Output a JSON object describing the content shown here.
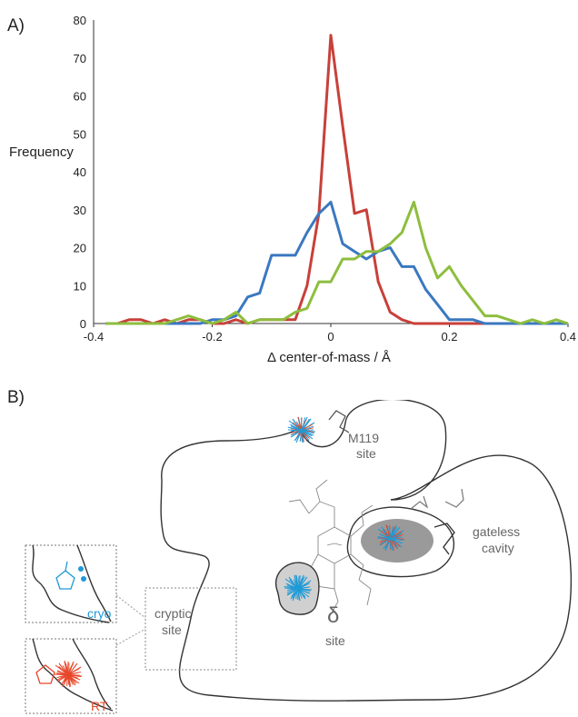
{
  "panels": {
    "a_label": "A)",
    "b_label": "B)"
  },
  "chart_data": {
    "type": "line",
    "title": "",
    "xlabel": "Δ center-of-mass / Å",
    "ylabel": "Frequency",
    "xlim": [
      -0.4,
      0.4
    ],
    "ylim": [
      0,
      80
    ],
    "xticks": [
      -0.4,
      -0.2,
      0,
      0.2,
      0.4
    ],
    "xtick_labels": [
      "-0.4",
      "-0.2",
      "0",
      "0.2",
      "0.4"
    ],
    "yticks": [
      0,
      10,
      20,
      30,
      40,
      50,
      60,
      70,
      80
    ],
    "ytick_labels": [
      "0",
      "10",
      "20",
      "30",
      "40",
      "50",
      "60",
      "70",
      "80"
    ],
    "grid": false,
    "legend": "none",
    "x": [
      -0.38,
      -0.36,
      -0.34,
      -0.32,
      -0.3,
      -0.28,
      -0.26,
      -0.24,
      -0.22,
      -0.2,
      -0.18,
      -0.16,
      -0.14,
      -0.12,
      -0.1,
      -0.08,
      -0.06,
      -0.04,
      -0.02,
      0,
      0.02,
      0.04,
      0.06,
      0.08,
      0.1,
      0.12,
      0.14,
      0.16,
      0.18,
      0.2,
      0.22,
      0.24,
      0.26,
      0.28,
      0.3,
      0.32,
      0.34,
      0.36,
      0.38,
      0.4
    ],
    "series": [
      {
        "color": "#c8403a",
        "values": [
          0,
          0,
          1,
          1,
          0,
          1,
          0,
          1,
          1,
          0,
          0,
          1,
          0,
          1,
          1,
          1,
          1,
          10,
          29,
          76,
          52,
          29,
          30,
          11,
          3,
          1,
          0,
          0,
          0,
          0,
          0,
          0,
          0,
          0,
          0,
          0,
          0,
          0,
          0,
          0
        ]
      },
      {
        "color": "#3b78c0",
        "values": [
          0,
          0,
          0,
          0,
          0,
          0,
          0,
          0,
          0,
          1,
          1,
          2,
          7,
          8,
          18,
          18,
          18,
          24,
          29,
          32,
          21,
          19,
          17,
          19,
          20,
          15,
          15,
          9,
          5,
          1,
          1,
          1,
          0,
          0,
          0,
          0,
          0,
          0,
          0,
          0
        ]
      },
      {
        "color": "#8dbe3e",
        "values": [
          0,
          0,
          0,
          0,
          0,
          0,
          1,
          2,
          1,
          0,
          1,
          3,
          0,
          1,
          1,
          1,
          3,
          4,
          11,
          11,
          17,
          17,
          19,
          19,
          21,
          24,
          32,
          20,
          12,
          15,
          10,
          6,
          2,
          2,
          1,
          0,
          1,
          0,
          1,
          0
        ]
      }
    ]
  },
  "schematic": {
    "labels": {
      "m119": [
        "M119",
        "site"
      ],
      "gateless": [
        "gateless",
        "cavity"
      ],
      "delta": [
        "δ",
        "site"
      ],
      "cryptic": [
        "cryptic",
        "site"
      ],
      "cryo": "cryo",
      "rt": "RT"
    },
    "colors": {
      "cryo": "#1e9ad6",
      "rt": "#e8472a",
      "outline": "#333333",
      "pocket": "#c8c8c8"
    }
  }
}
